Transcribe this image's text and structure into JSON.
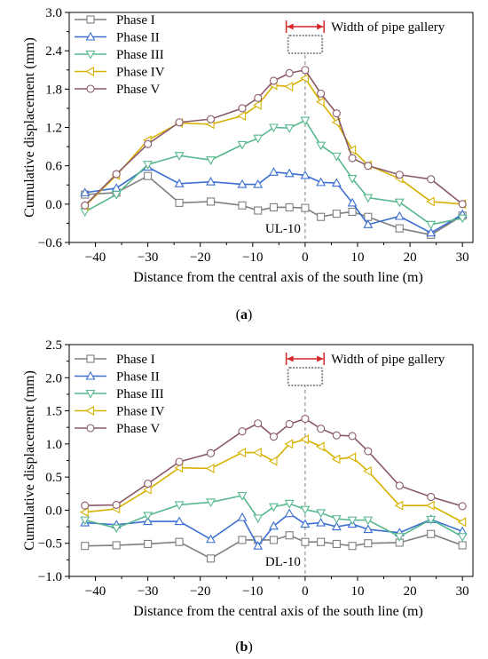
{
  "figure": {
    "panel_a_caption": "(a)",
    "panel_b_caption": "(b)",
    "caption_letters": [
      "a",
      "b"
    ]
  },
  "colors": {
    "phase1": "#7f7f7f",
    "phase2": "#3a6fd1",
    "phase3": "#57b88d",
    "phase4": "#d7b100",
    "phase5": "#8a5a6b",
    "annotation_red": "#d62728",
    "dashed_axis": "#808080"
  },
  "chart_data": [
    {
      "type": "line",
      "panel": "a",
      "xlabel": "Distance from the central axis of the south line (m)",
      "ylabel": "Cumulative displacement (mm)",
      "xlim": [
        -45,
        32
      ],
      "ylim": [
        -0.6,
        3.0
      ],
      "xticks": [
        -40,
        -30,
        -20,
        -10,
        0,
        10,
        20,
        30
      ],
      "xtick_labels": [
        "−40",
        "−30",
        "−20",
        "−10",
        "0",
        "10",
        "20",
        "30"
      ],
      "yticks": [
        -0.6,
        0.0,
        0.6,
        1.2,
        1.8,
        2.4,
        3.0
      ],
      "ytick_labels": [
        "−0.6",
        "0.0",
        "0.6",
        "1.2",
        "1.8",
        "2.4",
        "3.0"
      ],
      "annotation_label": "UL-10",
      "gallery_label": "Width of pipe gallery",
      "legend_position": "top-left",
      "x": [
        -42,
        -36,
        -30,
        -24,
        -18,
        -12,
        -9,
        -6,
        -3,
        0,
        3,
        6,
        9,
        12,
        18,
        24,
        30
      ],
      "series": [
        {
          "name": "Phase I",
          "marker": "square",
          "color_key": "phase1",
          "values": [
            0.15,
            0.18,
            0.44,
            0.02,
            0.04,
            -0.02,
            -0.1,
            -0.05,
            -0.05,
            -0.06,
            -0.2,
            -0.15,
            -0.12,
            -0.2,
            -0.38,
            -0.48,
            -0.18
          ]
        },
        {
          "name": "Phase II",
          "marker": "triangle-up",
          "color_key": "phase2",
          "values": [
            0.18,
            0.25,
            0.58,
            0.32,
            0.35,
            0.31,
            0.31,
            0.5,
            0.48,
            0.45,
            0.34,
            0.33,
            0.02,
            -0.32,
            -0.19,
            -0.45,
            -0.16
          ]
        },
        {
          "name": "Phase III",
          "marker": "triangle-down",
          "color_key": "phase3",
          "values": [
            -0.12,
            0.15,
            0.62,
            0.76,
            0.69,
            0.93,
            1.03,
            1.2,
            1.19,
            1.31,
            0.92,
            0.75,
            0.4,
            0.1,
            0.03,
            -0.32,
            -0.22
          ]
        },
        {
          "name": "Phase IV",
          "marker": "triangle-left",
          "color_key": "phase4",
          "values": [
            -0.03,
            0.45,
            1.0,
            1.27,
            1.25,
            1.38,
            1.55,
            1.86,
            1.84,
            1.97,
            1.6,
            1.28,
            0.85,
            0.61,
            0.4,
            0.04,
            0.0
          ]
        },
        {
          "name": "Phase V",
          "marker": "circle",
          "color_key": "phase5",
          "values": [
            -0.02,
            0.47,
            0.94,
            1.28,
            1.33,
            1.5,
            1.66,
            1.93,
            2.05,
            2.1,
            1.73,
            1.42,
            0.72,
            0.6,
            0.46,
            0.39,
            0.0
          ]
        }
      ]
    },
    {
      "type": "line",
      "panel": "b",
      "xlabel": "Distance from the central axis of the south line (m)",
      "ylabel": "Cumulative displacement (mm)",
      "xlim": [
        -45,
        32
      ],
      "ylim": [
        -1.0,
        2.5
      ],
      "xticks": [
        -40,
        -30,
        -20,
        -10,
        0,
        10,
        20,
        30
      ],
      "xtick_labels": [
        "−40",
        "−30",
        "−20",
        "−10",
        "0",
        "10",
        "20",
        "30"
      ],
      "yticks": [
        -1.0,
        -0.5,
        0.0,
        0.5,
        1.0,
        1.5,
        2.0,
        2.5
      ],
      "ytick_labels": [
        "−1.0",
        "−0.5",
        "0.0",
        "0.5",
        "1.0",
        "1.5",
        "2.0",
        "2.5"
      ],
      "annotation_label": "DL-10",
      "gallery_label": "Width of pipe gallery",
      "legend_position": "top-left",
      "x": [
        -42,
        -36,
        -30,
        -24,
        -18,
        -12,
        -9,
        -6,
        -3,
        0,
        3,
        6,
        9,
        12,
        18,
        24,
        30
      ],
      "series": [
        {
          "name": "Phase I",
          "marker": "square",
          "color_key": "phase1",
          "values": [
            -0.54,
            -0.53,
            -0.51,
            -0.48,
            -0.73,
            -0.45,
            -0.45,
            -0.45,
            -0.38,
            -0.48,
            -0.48,
            -0.51,
            -0.54,
            -0.5,
            -0.49,
            -0.36,
            -0.53
          ]
        },
        {
          "name": "Phase II",
          "marker": "triangle-up",
          "color_key": "phase2",
          "values": [
            -0.19,
            -0.22,
            -0.17,
            -0.17,
            -0.44,
            -0.11,
            -0.54,
            -0.24,
            -0.05,
            -0.21,
            -0.19,
            -0.25,
            -0.21,
            -0.29,
            -0.34,
            -0.14,
            -0.32
          ]
        },
        {
          "name": "Phase III",
          "marker": "triangle-down",
          "color_key": "phase3",
          "values": [
            -0.15,
            -0.27,
            -0.08,
            0.08,
            0.12,
            0.22,
            -0.12,
            0.05,
            0.1,
            0.01,
            -0.04,
            -0.13,
            -0.15,
            -0.15,
            -0.4,
            -0.14,
            -0.4
          ]
        },
        {
          "name": "Phase IV",
          "marker": "triangle-left",
          "color_key": "phase4",
          "values": [
            -0.03,
            0.02,
            0.31,
            0.64,
            0.63,
            0.87,
            0.87,
            0.74,
            1.0,
            1.07,
            0.96,
            0.77,
            0.8,
            0.59,
            0.07,
            0.07,
            -0.18
          ]
        },
        {
          "name": "Phase V",
          "marker": "circle",
          "color_key": "phase5",
          "values": [
            0.07,
            0.08,
            0.4,
            0.73,
            0.86,
            1.19,
            1.31,
            1.11,
            1.3,
            1.38,
            1.23,
            1.13,
            1.12,
            0.89,
            0.37,
            0.2,
            0.06
          ]
        }
      ]
    }
  ]
}
